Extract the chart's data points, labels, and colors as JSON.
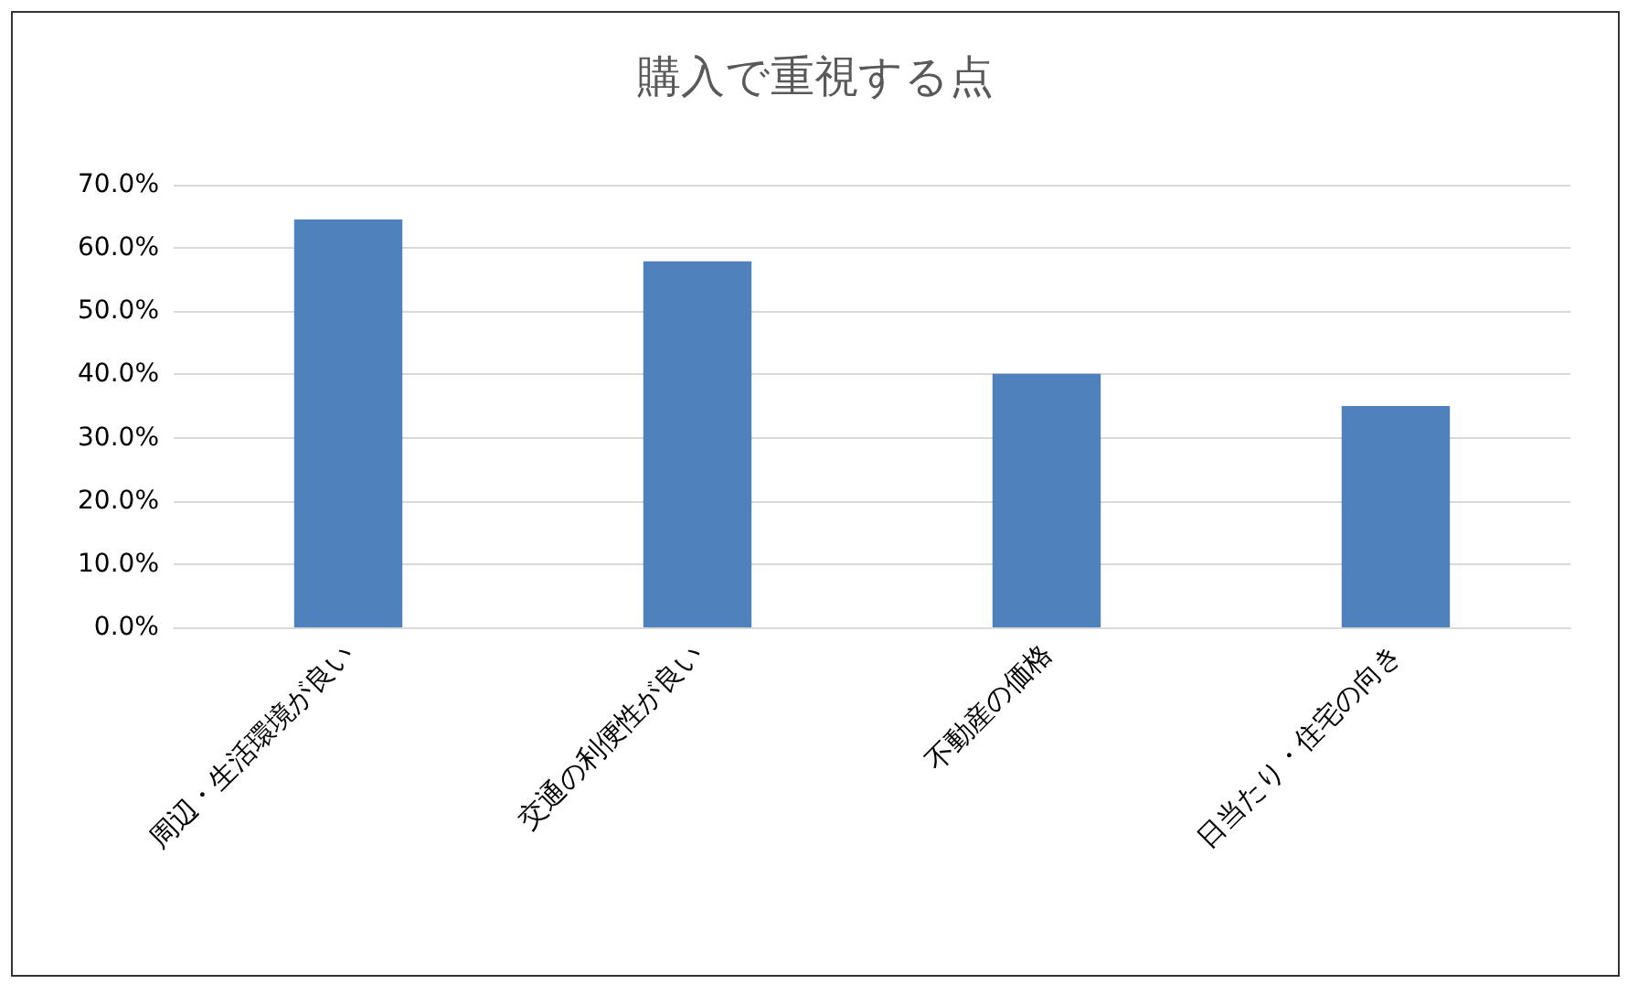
{
  "chart_data": {
    "type": "bar",
    "title": "購入で重視する点",
    "categories": [
      "周辺・生活環境が良い",
      "交通の利便性が良い",
      "不動産の価格",
      "日当たり・住宅の向き"
    ],
    "values": [
      64.5,
      57.9,
      40.1,
      35.0
    ],
    "color": "#4f81bd",
    "ylim": [
      0,
      70
    ],
    "yticks": [
      {
        "value": 0,
        "label": "0.0%"
      },
      {
        "value": 10,
        "label": "10.0%"
      },
      {
        "value": 20,
        "label": "20.0%"
      },
      {
        "value": 30,
        "label": "30.0%"
      },
      {
        "value": 40,
        "label": "40.0%"
      },
      {
        "value": 50,
        "label": "50.0%"
      },
      {
        "value": 60,
        "label": "60.0%"
      },
      {
        "value": 70,
        "label": "70.0%"
      }
    ],
    "grid": true
  }
}
